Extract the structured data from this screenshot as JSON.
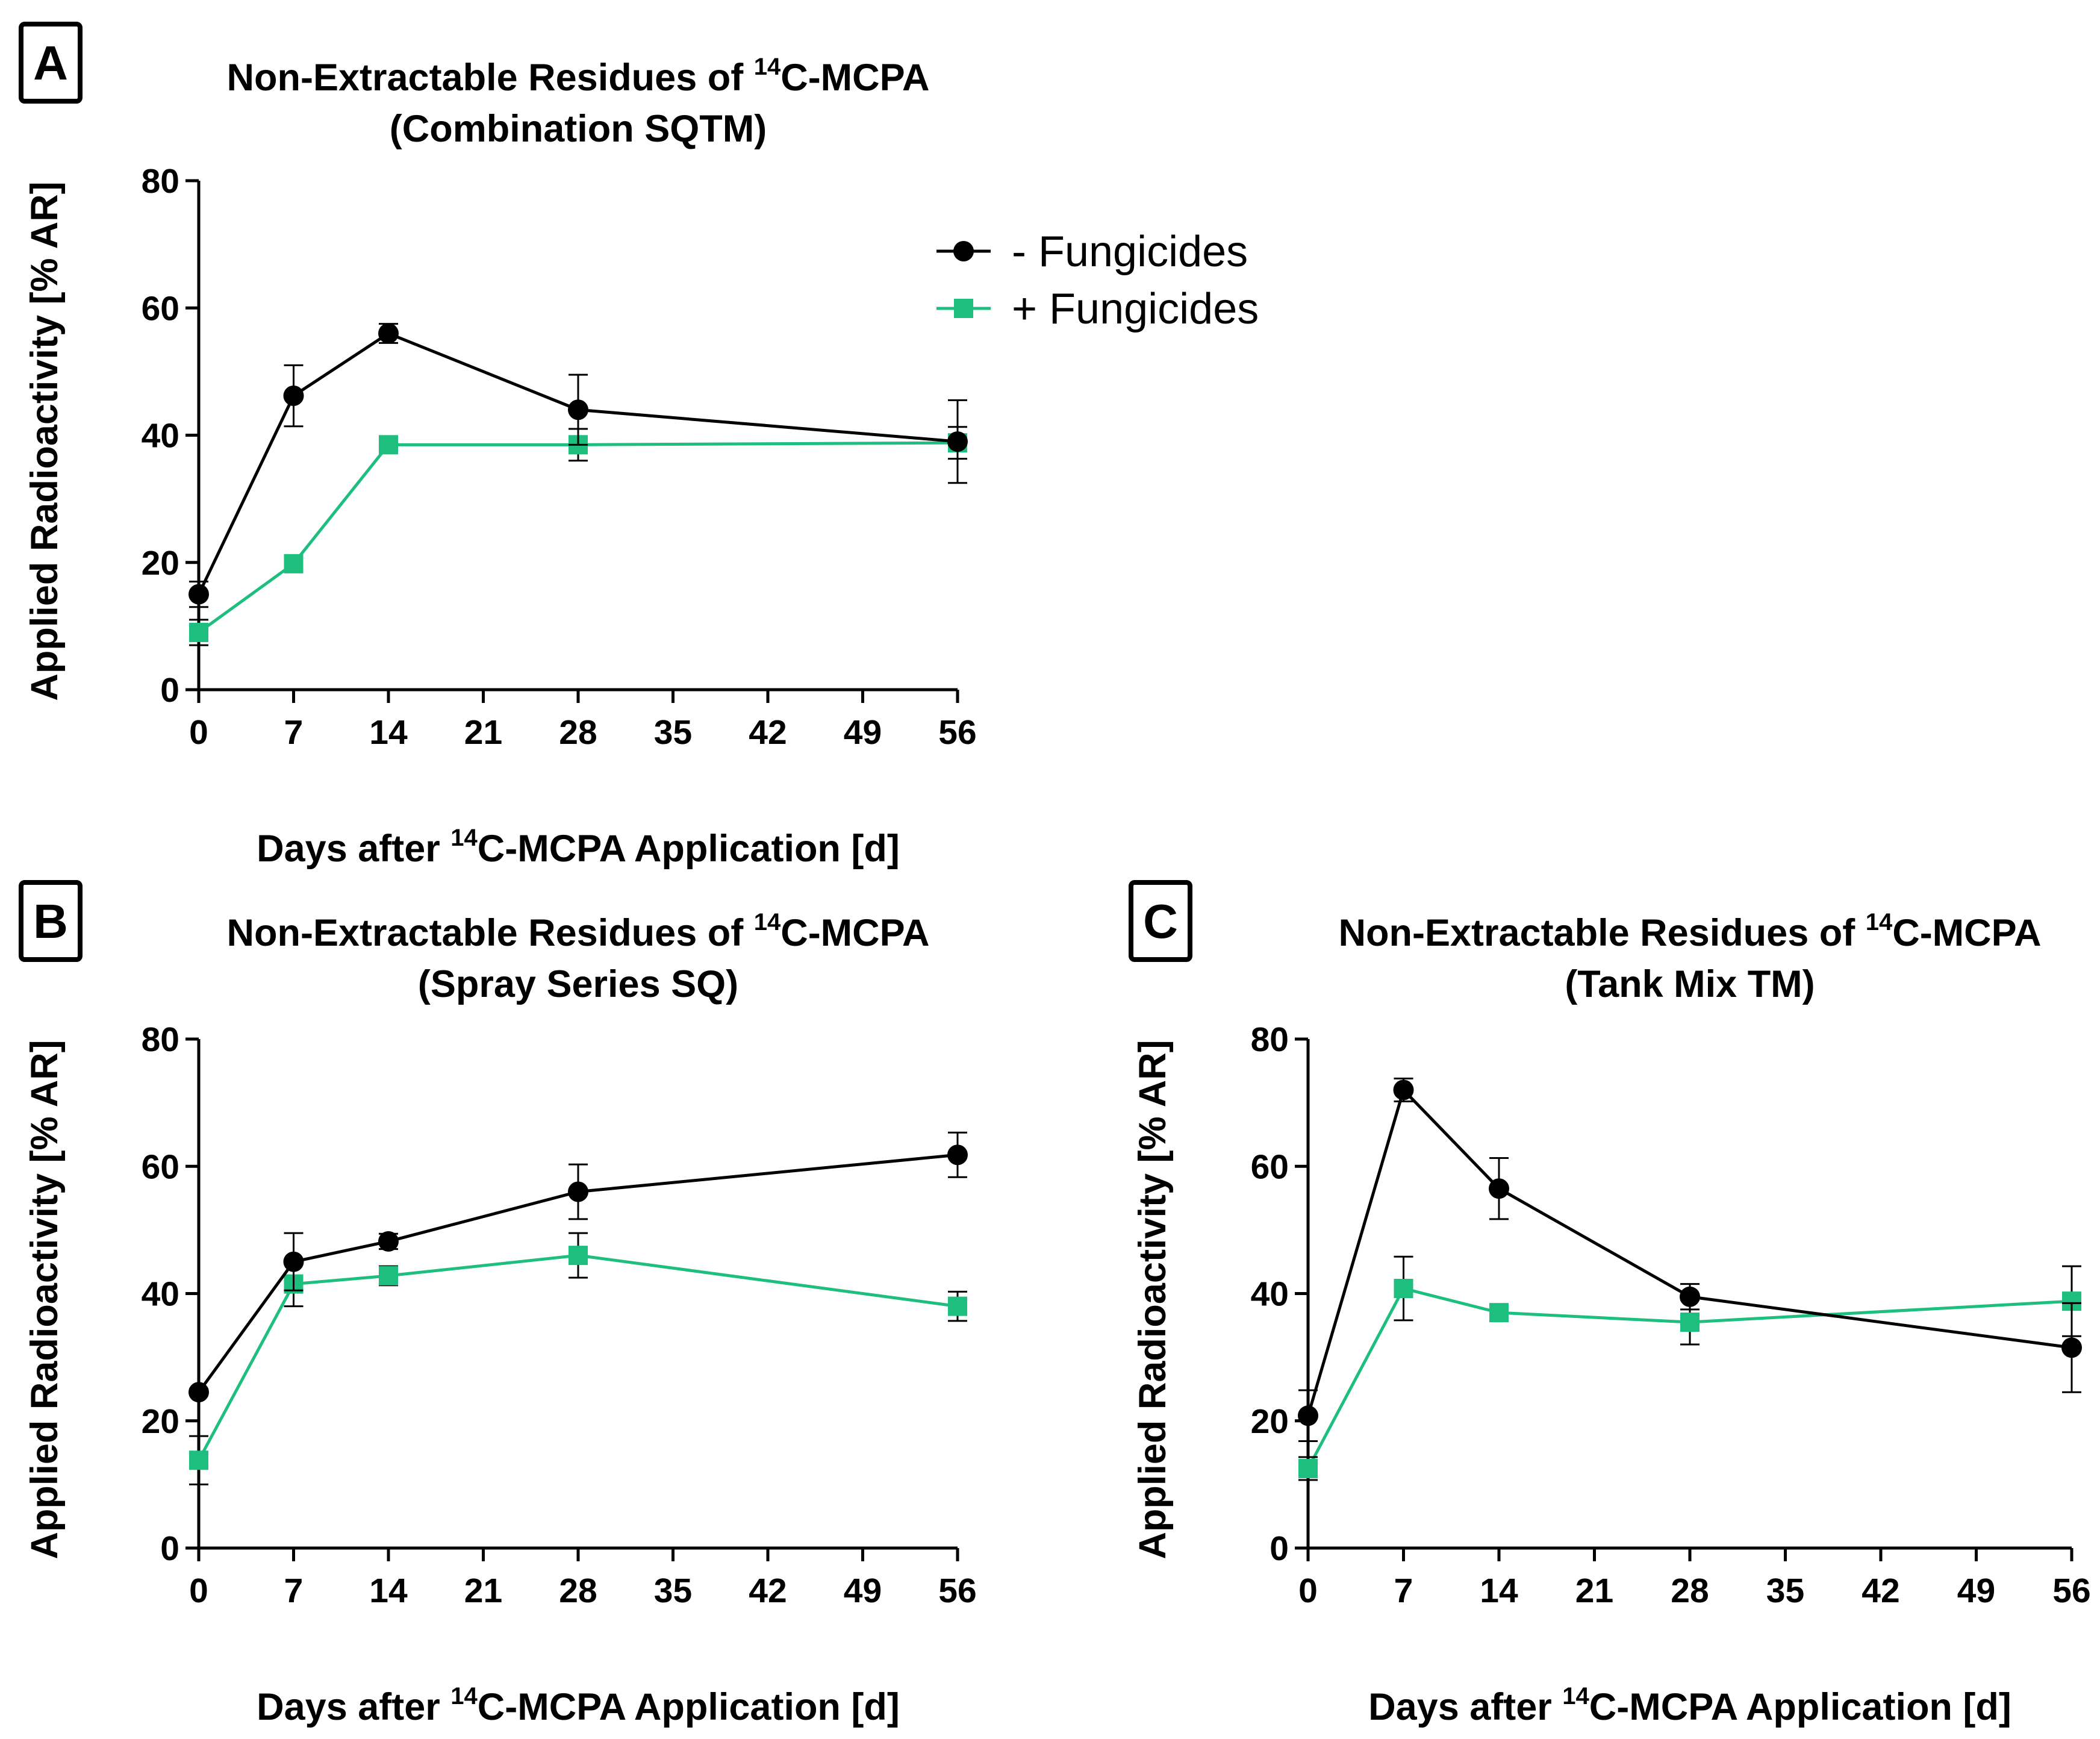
{
  "legend": {
    "entries": [
      {
        "label": "- Fungicides",
        "color": "#000000",
        "marker": "circle"
      },
      {
        "label": "+ Fungicides",
        "color": "#1dbe7e",
        "marker": "square"
      }
    ]
  },
  "chart_data": [
    {
      "type": "line",
      "panel_label": "A",
      "title_line1_pre": "Non-Extractable Residues of ",
      "title_sup": "14",
      "title_line1_post": "C-MCPA",
      "title_line2": "(Combination SQTM)",
      "xlabel_pre": "Days after ",
      "xlabel_sup": "14",
      "xlabel_post": "C-MCPA Application [d]",
      "ylabel": "Applied Radioactivity [% AR]",
      "xlim": [
        0,
        56
      ],
      "ylim": [
        0,
        80
      ],
      "xticks": [
        0,
        7,
        14,
        21,
        28,
        35,
        42,
        49,
        56
      ],
      "yticks": [
        0,
        20,
        40,
        60,
        80
      ],
      "x": [
        0,
        7,
        14,
        28,
        56
      ],
      "series": [
        {
          "name": "- Fungicides",
          "color": "#000000",
          "marker": "circle",
          "values": [
            15.0,
            46.2,
            56.0,
            44.0,
            39.0
          ],
          "errors": [
            2.0,
            4.8,
            1.5,
            5.5,
            6.5
          ]
        },
        {
          "name": "+ Fungicides",
          "color": "#1dbe7e",
          "marker": "square",
          "values": [
            9.0,
            19.8,
            38.5,
            38.5,
            38.8
          ],
          "errors": [
            2.0,
            1.0,
            0.8,
            2.5,
            2.5
          ]
        }
      ]
    },
    {
      "type": "line",
      "panel_label": "B",
      "title_line1_pre": "Non-Extractable Residues of ",
      "title_sup": "14",
      "title_line1_post": "C-MCPA",
      "title_line2": "(Spray Series SQ)",
      "xlabel_pre": "Days after ",
      "xlabel_sup": "14",
      "xlabel_post": "C-MCPA Application [d]",
      "ylabel": "Applied Radioactivity [% AR]",
      "xlim": [
        0,
        56
      ],
      "ylim": [
        0,
        80
      ],
      "xticks": [
        0,
        7,
        14,
        21,
        28,
        35,
        42,
        49,
        56
      ],
      "yticks": [
        0,
        20,
        40,
        60,
        80
      ],
      "x": [
        0,
        7,
        14,
        28,
        56
      ],
      "series": [
        {
          "name": "- Fungicides",
          "color": "#000000",
          "marker": "circle",
          "values": [
            24.5,
            45.0,
            48.2,
            56.0,
            61.8
          ],
          "errors": [
            0.5,
            4.5,
            1.2,
            4.3,
            3.5
          ]
        },
        {
          "name": "+ Fungicides",
          "color": "#1dbe7e",
          "marker": "square",
          "values": [
            13.8,
            41.5,
            42.8,
            46.0,
            38.0
          ],
          "errors": [
            3.8,
            3.5,
            1.5,
            3.5,
            2.3
          ]
        }
      ]
    },
    {
      "type": "line",
      "panel_label": "C",
      "title_line1_pre": "Non-Extractable Residues of ",
      "title_sup": "14",
      "title_line1_post": "C-MCPA",
      "title_line2": "(Tank Mix TM)",
      "xlabel_pre": "Days after ",
      "xlabel_sup": "14",
      "xlabel_post": "C-MCPA Application [d]",
      "ylabel": "Applied Radioactivity [% AR]",
      "xlim": [
        0,
        56
      ],
      "ylim": [
        0,
        80
      ],
      "xticks": [
        0,
        7,
        14,
        21,
        28,
        35,
        42,
        49,
        56
      ],
      "yticks": [
        0,
        20,
        40,
        60,
        80
      ],
      "x": [
        0,
        7,
        14,
        28,
        56
      ],
      "series": [
        {
          "name": "- Fungicides",
          "color": "#000000",
          "marker": "circle",
          "values": [
            20.8,
            72.0,
            56.5,
            39.5,
            31.5
          ],
          "errors": [
            4.0,
            1.8,
            4.8,
            2.0,
            7.0
          ]
        },
        {
          "name": "+ Fungicides",
          "color": "#1dbe7e",
          "marker": "square",
          "values": [
            12.5,
            40.8,
            37.0,
            35.5,
            38.8
          ],
          "errors": [
            1.8,
            5.0,
            0.8,
            3.5,
            5.5
          ]
        }
      ]
    }
  ]
}
